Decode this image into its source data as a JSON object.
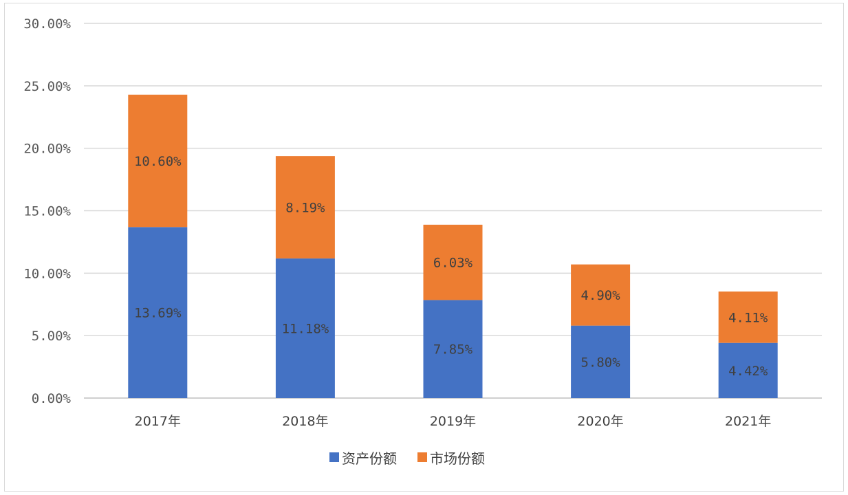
{
  "chart_data": {
    "type": "bar",
    "stacked": true,
    "title": "",
    "xlabel": "",
    "ylabel": "",
    "categories": [
      "2017年",
      "2018年",
      "2019年",
      "2020年",
      "2021年"
    ],
    "series": [
      {
        "name": "资产份额",
        "color": "#4472C4",
        "values": [
          13.69,
          11.18,
          7.85,
          5.8,
          4.42
        ],
        "labels": [
          "13.69%",
          "11.18%",
          "7.85%",
          "5.80%",
          "4.42%"
        ]
      },
      {
        "name": "市场份额",
        "color": "#ED7D31",
        "values": [
          10.6,
          8.19,
          6.03,
          4.9,
          4.11
        ],
        "labels": [
          "10.60%",
          "8.19%",
          "6.03%",
          "4.90%",
          "4.11%"
        ]
      }
    ],
    "ylim": [
      0,
      30
    ],
    "yticks": [
      0,
      5,
      10,
      15,
      20,
      25,
      30
    ],
    "ytick_labels": [
      "0.00%",
      "5.00%",
      "10.00%",
      "15.00%",
      "20.00%",
      "25.00%",
      "30.00%"
    ],
    "grid": true,
    "legend_position": "bottom"
  }
}
